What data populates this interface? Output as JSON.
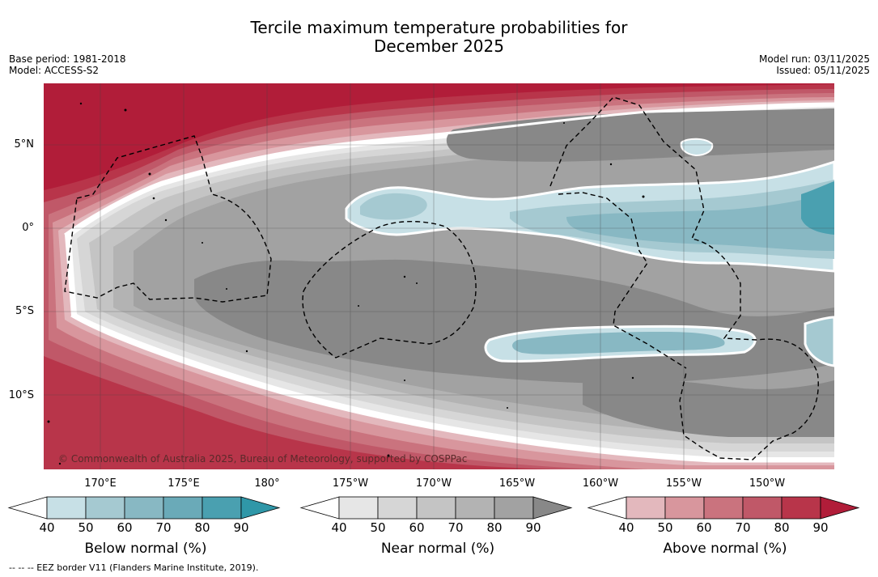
{
  "title": {
    "line1": "Tercile maximum temperature probabilities for",
    "line2": "December 2025"
  },
  "meta_left": {
    "base_period": "Base period: 1981-2018",
    "model": "Model: ACCESS-S2"
  },
  "meta_right": {
    "model_run": "Model run: 03/11/2025",
    "issued": "Issued: 05/11/2025"
  },
  "map": {
    "lat_labels": [
      "5°N",
      "0°",
      "5°S",
      "10°S"
    ],
    "lon_labels": [
      "170°E",
      "175°E",
      "180°",
      "175°W",
      "170°W",
      "165°W",
      "160°W",
      "155°W",
      "150°W"
    ],
    "copyright": "© Commonwealth of Australia 2025, Bureau of Meteorology, supported by COSPPac"
  },
  "colorbars": [
    {
      "title": "Below normal (%)",
      "ticks": [
        "40",
        "50",
        "60",
        "70",
        "80",
        "90"
      ],
      "colors": [
        "#ffffff",
        "#c7e0e6",
        "#a5c9d1",
        "#88b8c3",
        "#6aaab8",
        "#4aa0b0",
        "#2f97a8"
      ]
    },
    {
      "title": "Near normal (%)",
      "ticks": [
        "40",
        "50",
        "60",
        "70",
        "80",
        "90"
      ],
      "colors": [
        "#ffffff",
        "#e6e6e6",
        "#d6d6d6",
        "#c4c4c4",
        "#b3b3b3",
        "#a2a2a2",
        "#888888"
      ]
    },
    {
      "title": "Above normal (%)",
      "ticks": [
        "40",
        "50",
        "60",
        "70",
        "80",
        "90"
      ],
      "colors": [
        "#ffffff",
        "#e3b8bd",
        "#d8969d",
        "#ca737e",
        "#c05868",
        "#b8354a",
        "#b11d39"
      ]
    }
  ],
  "footnote": "--  --  -- EEZ border V11 (Flanders Marine Institute, 2019)."
}
